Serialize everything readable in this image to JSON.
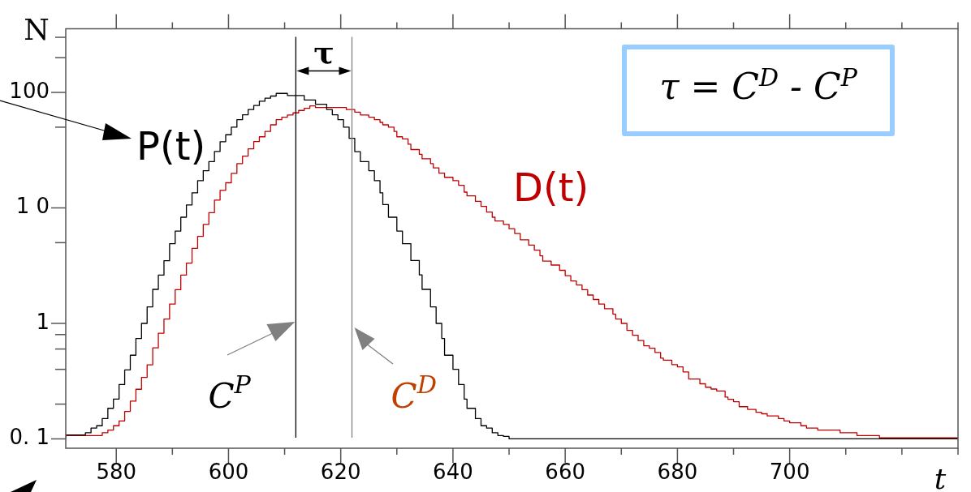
{
  "chart_data": {
    "type": "step",
    "xlabel": "t",
    "ylabel": "N",
    "log": "y",
    "grid": false,
    "legend": false,
    "marker": "none",
    "xlim": [
      571,
      730
    ],
    "xticks": [
      580,
      {
        "value": 590,
        "label": null
      },
      600,
      {
        "value": 610,
        "label": null
      },
      620,
      {
        "value": 630,
        "label": null
      },
      640,
      {
        "value": 650,
        "label": null
      },
      660,
      {
        "value": 670,
        "label": null
      },
      680,
      {
        "value": 690,
        "label": null
      },
      700,
      {
        "value": 710,
        "label": null
      },
      {
        "value": 720,
        "label": null
      },
      {
        "value": 730,
        "label": null
      }
    ],
    "ylim": [
      0.083,
      355
    ],
    "yticks": [
      {
        "value": 300,
        "label": null
      },
      {
        "value": 200,
        "label": null
      },
      100,
      {
        "value": 50,
        "label": null
      },
      {
        "value": 10,
        "label": "1 0"
      },
      {
        "value": 5,
        "label": null
      },
      1,
      {
        "value": 0.8,
        "label": null
      },
      {
        "value": 0.6,
        "label": null
      },
      {
        "value": 0.4,
        "label": null
      },
      {
        "value": 0.2,
        "label": null
      },
      {
        "value": 0.1,
        "label": "0. 1"
      }
    ],
    "series": [
      {
        "name": "P(t)",
        "color": "#000000",
        "x": [
          571,
          574.5,
          575.5,
          576.5,
          577.5,
          578.5,
          579.5,
          580.5,
          581.5,
          582.5,
          583.5,
          584.5,
          585.5,
          586.5,
          587.5,
          588.5,
          589.5,
          590.5,
          591.5,
          592.5,
          593.5,
          594.5,
          595.5,
          596.5,
          597.5,
          598.5,
          599.5,
          600.5,
          601.5,
          602.5,
          603.5,
          604.5,
          605.5,
          606.5,
          607.5,
          608.5,
          610.5,
          613.5,
          615.5,
          617.5,
          618.5,
          619.5,
          620.5,
          621.5,
          622.5,
          623.5,
          625,
          626,
          627,
          627.5,
          628.5,
          630,
          631,
          632.5,
          634,
          634.5,
          636,
          637,
          638,
          638.5,
          640,
          641,
          642,
          642.5,
          644,
          645,
          646,
          647,
          648,
          649,
          650,
          687.5,
          730
        ],
        "values": [
          0.105,
          0.108,
          0.113,
          0.124,
          0.13,
          0.15,
          0.184,
          0.221,
          0.296,
          0.396,
          0.53,
          0.74,
          1.0,
          1.39,
          1.97,
          2.62,
          3.49,
          4.9,
          6.3,
          8.3,
          10.6,
          13.5,
          17.2,
          21,
          25.2,
          30.8,
          37.4,
          43,
          50,
          58,
          64,
          71,
          77,
          84,
          89,
          93,
          98,
          94,
          86,
          79,
          71,
          64,
          58,
          50,
          40,
          30.7,
          25.2,
          21,
          17.2,
          13.5,
          10.7,
          8.3,
          6.3,
          4.9,
          3.5,
          2.63,
          1.97,
          1.39,
          1.0,
          0.74,
          0.53,
          0.4,
          0.296,
          0.221,
          0.184,
          0.15,
          0.13,
          0.124,
          0.113,
          0.107,
          0.105,
          0.1,
          0.1
        ]
      },
      {
        "name": "D(t)",
        "color": "#c00000",
        "x": [
          571,
          577.5,
          578.5,
          579.5,
          580.5,
          581.5,
          582.5,
          583.5,
          584.5,
          585.5,
          586.5,
          587.5,
          588.5,
          589.5,
          590.5,
          591.5,
          592.5,
          593.5,
          594.5,
          595.5,
          596.5,
          597.5,
          598.5,
          599.5,
          600.5,
          601.5,
          602.5,
          603.5,
          604.5,
          605.5,
          606.5,
          607.5,
          608.5,
          609.5,
          610.5,
          611.5,
          612.5,
          613.5,
          614.5,
          615.5,
          621,
          622.5,
          623.5,
          625,
          626,
          627,
          627.5,
          628.5,
          629.5,
          630,
          631,
          632,
          632.5,
          634,
          634.5,
          636,
          636.5,
          637.5,
          638.5,
          640,
          641,
          642,
          642.5,
          644,
          645,
          646,
          647,
          647.5,
          649,
          650,
          651,
          652,
          653.5,
          654.5,
          655.5,
          656,
          657.5,
          659,
          660,
          661,
          662,
          663,
          664,
          665,
          666,
          667,
          668.5,
          669,
          670,
          671,
          672,
          673,
          674,
          675,
          676,
          677,
          677.5,
          679,
          680,
          681,
          682,
          684,
          685,
          686,
          687,
          688.5,
          689,
          690,
          691,
          692.5,
          694,
          695,
          696,
          698,
          699,
          700,
          702,
          703,
          705,
          709,
          712,
          716,
          723,
          730
        ],
        "values": [
          0.1,
          0.107,
          0.113,
          0.119,
          0.13,
          0.143,
          0.173,
          0.212,
          0.269,
          0.341,
          0.438,
          0.614,
          0.823,
          1.09,
          1.47,
          1.96,
          2.62,
          3.33,
          4.47,
          5.67,
          7.2,
          9.1,
          11.7,
          14.2,
          16.5,
          19.9,
          24.2,
          28.1,
          32.5,
          37.6,
          41.3,
          45.9,
          52.4,
          58,
          61,
          63.8,
          66.5,
          69.8,
          72.8,
          76.4,
          74,
          71,
          67.5,
          63.8,
          61,
          58,
          55,
          52.4,
          50,
          45.9,
          41.3,
          39.6,
          35.6,
          32,
          29.1,
          26.6,
          24.2,
          22.2,
          20,
          18.4,
          17.2,
          15.7,
          13.7,
          12.7,
          11.4,
          10.3,
          9.2,
          8.3,
          7.7,
          7.2,
          6.6,
          6.0,
          5.3,
          4.76,
          4.3,
          3.85,
          3.46,
          3.2,
          2.88,
          2.59,
          2.33,
          2.15,
          1.96,
          1.76,
          1.61,
          1.47,
          1.34,
          1.2,
          1.09,
          1.0,
          0.87,
          0.79,
          0.71,
          0.64,
          0.61,
          0.56,
          0.5,
          0.48,
          0.44,
          0.42,
          0.38,
          0.33,
          0.3,
          0.28,
          0.27,
          0.26,
          0.23,
          0.22,
          0.21,
          0.19,
          0.18,
          0.17,
          0.165,
          0.158,
          0.15,
          0.143,
          0.138,
          0.13,
          0.124,
          0.119,
          0.113,
          0.107,
          0.102,
          0.102
        ]
      }
    ],
    "ref_lines": [
      {
        "axis": "x",
        "value": 612,
        "label": "C$^{P}$",
        "color": "#000000"
      },
      {
        "axis": "x",
        "value": 622,
        "label": "C$^{D}$",
        "color": "#808080"
      }
    ],
    "annotations": [
      "τ",
      "τ = C$^{D}$ - C$^{P}$"
    ]
  }
}
